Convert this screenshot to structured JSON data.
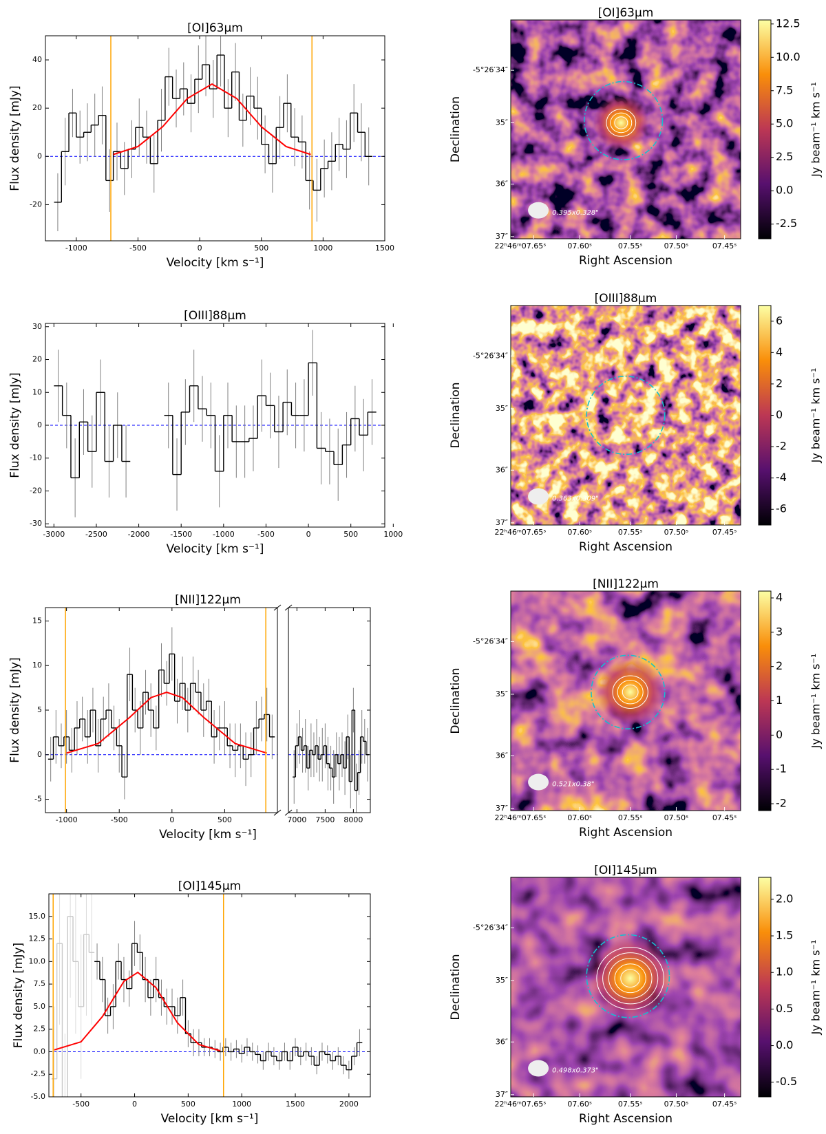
{
  "chart_data": [
    {
      "type": "step",
      "title": "[OI]63µm",
      "xlabel": "Velocity [km s⁻¹]",
      "ylabel": "Flux density [mJy]",
      "xlim": [
        -1250,
        1500
      ],
      "xticks": [
        -1000,
        -500,
        0,
        500,
        1000,
        1500
      ],
      "ylim": [
        -35,
        50
      ],
      "yticks": [
        -20,
        0,
        20,
        40
      ],
      "vlines": [
        -720,
        910
      ],
      "vline_color": "#ffa500",
      "zero_line_color": "#0000ff",
      "series": [
        {
          "style": "step",
          "color": "#000000",
          "error_color": "#808080",
          "x": [
            -1150,
            -1090,
            -1030,
            -970,
            -910,
            -850,
            -790,
            -730,
            -670,
            -610,
            -550,
            -490,
            -430,
            -370,
            -310,
            -250,
            -190,
            -130,
            -70,
            -10,
            50,
            110,
            170,
            230,
            290,
            350,
            410,
            470,
            530,
            590,
            650,
            710,
            770,
            830,
            890,
            950,
            1010,
            1070,
            1130,
            1190,
            1250,
            1310,
            1370
          ],
          "values": [
            -19,
            2,
            18,
            8,
            10,
            13,
            17,
            -10,
            2,
            -5,
            3,
            12,
            8,
            -3,
            15,
            33,
            24,
            28,
            22,
            32,
            38,
            28,
            42,
            20,
            35,
            15,
            25,
            20,
            5,
            -3,
            12,
            22,
            8,
            6,
            -10,
            -14,
            -5,
            -2,
            5,
            3,
            18,
            10,
            0
          ],
          "errors": [
            12,
            14,
            10,
            11,
            12,
            13,
            12,
            13,
            12,
            11,
            12,
            12,
            11,
            12,
            13,
            12,
            12,
            11,
            12,
            14,
            13,
            12,
            13,
            12,
            12,
            11,
            12,
            13,
            12,
            12,
            13,
            12,
            12,
            11,
            12,
            13,
            12,
            12,
            11,
            12,
            12,
            12,
            12
          ]
        },
        {
          "style": "line",
          "color": "#ff0000",
          "x": [
            -700,
            -500,
            -300,
            -100,
            100,
            300,
            500,
            700,
            900
          ],
          "values": [
            0.8,
            4.1,
            12.3,
            24,
            30,
            24,
            12.3,
            4.1,
            0.8
          ]
        }
      ]
    },
    {
      "type": "image",
      "title": "[OI]63µm",
      "xlabel": "Right Ascension",
      "ylabel": "Declination",
      "xtick_labels": [
        "22ʰ46ᵐ07.65ˢ",
        "07.60ˢ",
        "07.55ˢ",
        "07.50ˢ",
        "07.45ˢ"
      ],
      "ytick_labels": [
        "-5°26′34″",
        "35″",
        "36″",
        "37″"
      ],
      "clim": [
        -3.6,
        12.8
      ],
      "cticks": [
        -2.5,
        {
          "value": 0,
          "label": "0.0"
        },
        2.5,
        {
          "value": 5,
          "label": "5.0"
        },
        7.5,
        {
          "value": 10,
          "label": "10.0"
        },
        12.5
      ],
      "colorbar_label": "Jy beam⁻¹ km s⁻¹",
      "beam_label": "0.395x0.328\""
    },
    {
      "type": "step",
      "title": "[OIII]88µm",
      "xlabel": "Velocity [km s⁻¹]",
      "ylabel": "Flux density [mJy]",
      "xlim": [
        -3100,
        900
      ],
      "xticks": [
        -3000,
        -2500,
        -2000,
        -1500,
        -1000,
        -500,
        0,
        500,
        1000
      ],
      "ylim": [
        -31,
        31
      ],
      "yticks": [
        -30,
        -20,
        -10,
        0,
        10,
        20,
        30
      ],
      "vlines": [],
      "vline_color": "#ffa500",
      "zero_line_color": "#0000ff",
      "series": [
        {
          "style": "step",
          "color": "#000000",
          "error_color": "#808080",
          "x": [
            -2950,
            -2850,
            -2750,
            -2650,
            -2550,
            -2450,
            -2350,
            -2250,
            -2150,
            -2050,
            -1950,
            -1850,
            -1750,
            -1650,
            -1550,
            -1450,
            -1350,
            -1250,
            -1150,
            -1050,
            -950,
            -850,
            -750,
            -650,
            -550,
            -450,
            -350,
            -250,
            -150,
            -50,
            50,
            150,
            250,
            350,
            450,
            550,
            650,
            750
          ],
          "values": [
            12,
            3,
            -16,
            1,
            -8,
            10,
            -11,
            0,
            -11,
            null,
            null,
            null,
            null,
            3,
            -15,
            4,
            12,
            5,
            3,
            -14,
            3,
            -5,
            -5,
            -4,
            9,
            6,
            -2,
            7,
            3,
            3,
            19,
            -7,
            -8,
            -12,
            -6,
            2,
            -3,
            4
          ],
          "errors": [
            11,
            10,
            12,
            10,
            11,
            10,
            11,
            10,
            11,
            null,
            null,
            null,
            null,
            10,
            11,
            10,
            11,
            10,
            10,
            11,
            10,
            11,
            11,
            10,
            11,
            10,
            11,
            10,
            10,
            11,
            10,
            11,
            10,
            11,
            10,
            10,
            11,
            10
          ]
        }
      ]
    },
    {
      "type": "image",
      "title": "[OIII]88µm",
      "xlabel": "Right Ascension",
      "ylabel": "Declination",
      "xtick_labels": [
        "22ʰ46ᵐ07.65ˢ",
        "07.60ˢ",
        "07.55ˢ",
        "07.50ˢ",
        "07.45ˢ"
      ],
      "ytick_labels": [
        "-5°26′34″",
        "35″",
        "36″",
        "37″"
      ],
      "clim": [
        -7,
        7
      ],
      "cticks": [
        -6,
        -4,
        -2,
        0,
        2,
        4,
        6
      ],
      "colorbar_label": "Jy beam⁻¹ km s⁻¹",
      "beam_label": "0.363x0.309\""
    },
    {
      "type": "step",
      "title": "[NII]122µm",
      "xlabel": "Velocity [km s⁻¹]",
      "ylabel": "Flux density [mJy]",
      "xlim": [
        [
          -1200,
          1000
        ],
        [
          6850,
          8300
        ]
      ],
      "xticks": [
        -1000,
        -500,
        0,
        500,
        7000,
        7500,
        8000
      ],
      "ylim": [
        -6.5,
        16.5
      ],
      "yticks": [
        -5,
        0,
        5,
        10,
        15
      ],
      "vlines": [
        -1010,
        890
      ],
      "vline_color": "#ffa500",
      "zero_line_color": "#0000ff",
      "series": [
        {
          "style": "step",
          "color": "#000000",
          "error_color": "#808080",
          "x": [
            -1150,
            -1100,
            -1050,
            -1000,
            -950,
            -900,
            -850,
            -800,
            -750,
            -700,
            -650,
            -600,
            -550,
            -500,
            -450,
            -400,
            -350,
            -300,
            -250,
            -200,
            -150,
            -100,
            -50,
            0,
            50,
            100,
            150,
            200,
            250,
            300,
            350,
            400,
            450,
            500,
            550,
            600,
            650,
            700,
            750,
            800,
            850,
            900,
            950,
            6950,
            7000,
            7050,
            7100,
            7150,
            7200,
            7250,
            7300,
            7350,
            7400,
            7450,
            7500,
            7550,
            7600,
            7650,
            7700,
            7750,
            7800,
            7850,
            7900,
            7950,
            8000,
            8050,
            8100,
            8150,
            8200,
            8250
          ],
          "values": [
            -0.5,
            2,
            1,
            2,
            0.5,
            3,
            4,
            2,
            5,
            1,
            4,
            5,
            3,
            1,
            -2.5,
            9,
            5,
            3,
            7,
            5,
            3,
            9.5,
            8,
            11.3,
            6,
            8,
            5,
            8,
            7,
            5,
            6,
            2,
            3,
            3,
            1,
            0.5,
            1,
            -0.5,
            0,
            3,
            4,
            4.5,
            2,
            -2.5,
            1,
            2,
            0.5,
            1,
            -1.5,
            0.5,
            0,
            1,
            -0.5,
            0,
            1,
            -1,
            -1.5,
            -2.5,
            0,
            -1,
            0,
            -1.5,
            2,
            -3,
            5,
            -4,
            -2,
            2,
            1.5,
            0
          ],
          "errors": [
            2.5,
            3,
            2.5,
            3,
            2.5,
            3,
            2.5,
            3,
            2.5,
            3,
            2.5,
            3,
            2.5,
            3,
            2.5,
            3,
            2.5,
            3,
            2.5,
            3,
            2.5,
            3,
            2.5,
            3,
            2.5,
            3,
            2.5,
            3,
            2.5,
            3,
            2.5,
            3,
            2.5,
            3,
            2.5,
            3,
            2.5,
            3,
            2.5,
            3,
            2.5,
            3,
            2.5,
            3,
            2.5,
            3,
            2.5,
            3,
            2.5,
            3,
            2.5,
            3,
            2.5,
            3,
            2.5,
            3,
            2.5,
            3,
            2.5,
            3,
            2.5,
            3,
            2.5,
            3,
            2.5,
            3,
            2.5,
            3,
            2.5,
            3
          ]
        },
        {
          "style": "line",
          "color": "#ff0000",
          "x": [
            -1000,
            -700,
            -400,
            -200,
            -50,
            100,
            300,
            600,
            900
          ],
          "values": [
            0.18,
            1.25,
            4.2,
            6.4,
            7,
            6.4,
            4.2,
            1.25,
            0.18
          ]
        }
      ]
    },
    {
      "type": "image",
      "title": "[NII]122µm",
      "xlabel": "Right Ascension",
      "ylabel": "Declination",
      "xtick_labels": [
        "22ʰ46ᵐ07.65ˢ",
        "07.60ˢ",
        "07.55ˢ",
        "07.50ˢ",
        "07.45ˢ"
      ],
      "ytick_labels": [
        "-5°26′34″",
        "35″",
        "36″",
        "37″"
      ],
      "clim": [
        -2.2,
        4.2
      ],
      "cticks": [
        -2,
        -1,
        0,
        1,
        2,
        3,
        4
      ],
      "colorbar_label": "Jy beam⁻¹ km s⁻¹",
      "beam_label": "0.521x0.38\""
    },
    {
      "type": "step",
      "title": "[OI]145µm",
      "xlabel": "Velocity [km s⁻¹]",
      "ylabel": "Flux density [mJy]",
      "xlim": [
        -800,
        2200
      ],
      "xticks": [
        -500,
        0,
        500,
        1000,
        1500,
        2000
      ],
      "ylim": [
        -5,
        17.5
      ],
      "yticks": [
        {
          "value": -5,
          "label": "-5.0"
        },
        -2.5,
        {
          "value": 0,
          "label": "0.0"
        },
        2.5,
        {
          "value": 5,
          "label": "5.0"
        },
        7.5,
        {
          "value": 10,
          "label": "10.0"
        },
        12.5,
        {
          "value": 15,
          "label": "15.0"
        }
      ],
      "vlines": [
        -760,
        830
      ],
      "vline_color": "#ffa500",
      "zero_line_color": "#0000ff",
      "series": [
        {
          "style": "step",
          "color": "#c8c8c8",
          "error_color": "#dcdcdc",
          "x": [
            -750,
            -700,
            -650,
            -600,
            -550,
            -500,
            -450,
            -400
          ],
          "values": [
            -3,
            12,
            -6,
            15,
            10,
            5,
            13,
            11
          ],
          "errors": [
            8,
            9,
            8,
            9,
            8,
            8,
            9,
            8
          ]
        },
        {
          "style": "step",
          "color": "#000000",
          "error_color": "#808080",
          "x": [
            -350,
            -300,
            -250,
            -200,
            -150,
            -100,
            -50,
            0,
            50,
            100,
            150,
            200,
            250,
            300,
            350,
            400,
            450,
            500,
            550,
            600,
            650,
            700,
            750,
            800,
            850,
            900,
            950,
            1000,
            1050,
            1100,
            1150,
            1200,
            1250,
            1300,
            1350,
            1400,
            1450,
            1500,
            1550,
            1600,
            1650,
            1700,
            1750,
            1800,
            1850,
            1900,
            1950,
            2000,
            2050,
            2100
          ],
          "values": [
            10,
            8,
            4,
            5,
            10,
            8,
            7,
            12,
            11,
            8,
            6,
            8,
            6,
            5,
            5,
            4,
            6,
            2,
            1,
            1,
            0.5,
            0.5,
            0.3,
            0,
            0.5,
            0,
            0.3,
            -0.2,
            0.5,
            0,
            -0.3,
            -1,
            0,
            -0.5,
            -1,
            0,
            -1,
            0.5,
            -0.5,
            0,
            -0.5,
            -1.5,
            0,
            -0.3,
            -1,
            -0.5,
            -1.5,
            -2,
            -0.5,
            1
          ],
          "errors": [
            2,
            2.5,
            2,
            2.5,
            2,
            2.5,
            2,
            2.5,
            2,
            2.5,
            2,
            2.5,
            2,
            2,
            2,
            2,
            2,
            1.5,
            1.5,
            1.5,
            1,
            1,
            1,
            1,
            1,
            1,
            1,
            1,
            1,
            1,
            1,
            1,
            1,
            1,
            1,
            1,
            1,
            1,
            1,
            1,
            1,
            1,
            1,
            1,
            1,
            1,
            1,
            1,
            1,
            1.5
          ]
        },
        {
          "style": "line",
          "color": "#ff0000",
          "x": [
            -750,
            -500,
            -300,
            -100,
            30,
            200,
            400,
            600,
            800
          ],
          "values": [
            0.2,
            1.1,
            3.9,
            7.8,
            8.8,
            7.1,
            3.2,
            0.8,
            0.1
          ]
        }
      ]
    },
    {
      "type": "image",
      "title": "[OI]145µm",
      "xlabel": "Right Ascension",
      "ylabel": "Declination",
      "xtick_labels": [
        "22ʰ46ᵐ07.65ˢ",
        "07.60ˢ",
        "07.55ˢ",
        "07.50ˢ",
        "07.45ˢ"
      ],
      "ytick_labels": [
        "-5°26′34″",
        "35″",
        "36″",
        "37″"
      ],
      "clim": [
        -0.7,
        2.3
      ],
      "cticks": [
        -0.5,
        {
          "value": 0,
          "label": "0.0"
        },
        0.5,
        {
          "value": 1,
          "label": "1.0"
        },
        1.5,
        {
          "value": 2,
          "label": "2.0"
        }
      ],
      "colorbar_label": "Jy beam⁻¹ km s⁻¹",
      "beam_label": "0.498x0.373\""
    }
  ]
}
